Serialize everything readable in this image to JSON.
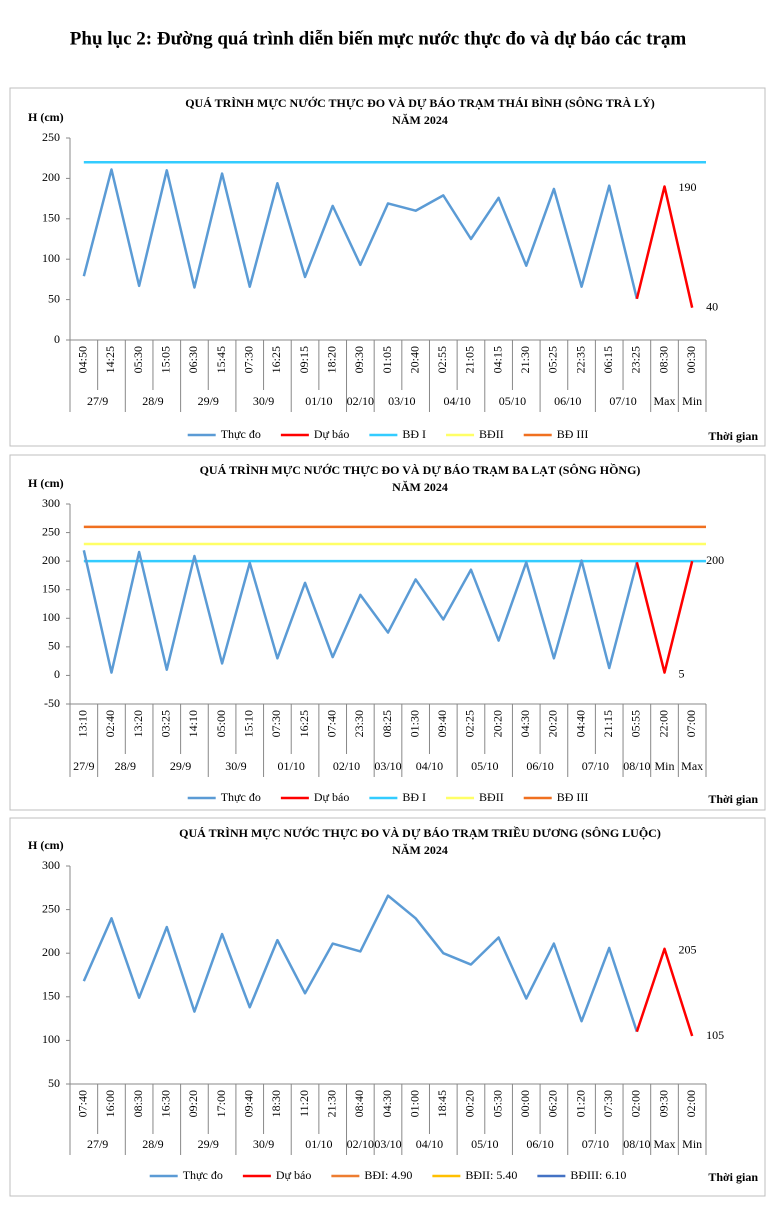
{
  "page_title": "Phụ lục 2: Đường quá trình diễn biến mực nước thực đo và dự báo các trạm",
  "chart_data": [
    {
      "type": "line",
      "title": "QUÁ TRÌNH MỰC NƯỚC THỰC ĐO VÀ DỰ BÁO TRẠM THÁI BÌNH (SÔNG TRÀ LÝ)",
      "subtitle": "NĂM 2024",
      "y_label": "H (cm)",
      "x_label": "Thời gian",
      "ylim": [
        0,
        250
      ],
      "yticks": [
        0,
        50,
        100,
        150,
        200,
        250
      ],
      "categories": [
        "04:50",
        "14:25",
        "05:30",
        "15:05",
        "06:30",
        "15:45",
        "07:30",
        "16:25",
        "09:15",
        "18:20",
        "09:30",
        "01:05",
        "20:40",
        "02:55",
        "21:05",
        "04:15",
        "21:30",
        "05:25",
        "22:35",
        "06:15",
        "23:25",
        "08:30",
        "00:30"
      ],
      "x_groups": [
        {
          "label": "27/9",
          "count": 2
        },
        {
          "label": "28/9",
          "count": 2
        },
        {
          "label": "29/9",
          "count": 2
        },
        {
          "label": "30/9",
          "count": 2
        },
        {
          "label": "01/10",
          "count": 2
        },
        {
          "label": "02/10",
          "count": 1
        },
        {
          "label": "03/10",
          "count": 2
        },
        {
          "label": "04/10",
          "count": 2
        },
        {
          "label": "05/10",
          "count": 2
        },
        {
          "label": "06/10",
          "count": 2
        },
        {
          "label": "07/10",
          "count": 2
        },
        {
          "label": "Max",
          "count": 1
        },
        {
          "label": "Min",
          "count": 1
        }
      ],
      "series": [
        {
          "name": "Thực đo",
          "color": "#5b9bd5",
          "values": [
            79,
            211,
            67,
            210,
            65,
            206,
            66,
            194,
            78,
            166,
            93,
            169,
            160,
            179,
            125,
            176,
            92,
            187,
            66,
            191,
            51,
            null,
            null
          ]
        },
        {
          "name": "Dự báo",
          "color": "#ff0000",
          "values": [
            null,
            null,
            null,
            null,
            null,
            null,
            null,
            null,
            null,
            null,
            null,
            null,
            null,
            null,
            null,
            null,
            null,
            null,
            null,
            null,
            51,
            190,
            40
          ]
        }
      ],
      "thresholds": [
        {
          "name": "BĐ I",
          "color": "#33ccff",
          "value": 220
        },
        {
          "name": "BĐII",
          "color": "#ffff66"
        },
        {
          "name": "BĐ III",
          "color": "#f07020"
        }
      ]
    },
    {
      "type": "line",
      "title": "QUÁ TRÌNH MỰC NƯỚC THỰC ĐO VÀ DỰ BÁO TRẠM BA LẠT (SÔNG HỒNG)",
      "subtitle": "NĂM 2024",
      "y_label": "H (cm)",
      "x_label": "Thời gian",
      "ylim": [
        -50,
        300
      ],
      "yticks": [
        -50,
        0,
        50,
        100,
        150,
        200,
        250,
        300
      ],
      "categories": [
        "13:10",
        "02:40",
        "13:20",
        "03:25",
        "14:10",
        "05:00",
        "15:10",
        "07:30",
        "16:25",
        "07:40",
        "23:30",
        "08:25",
        "01:30",
        "09:40",
        "02:25",
        "20:20",
        "04:30",
        "20:20",
        "04:40",
        "21:15",
        "05:55",
        "22:00",
        "07:00"
      ],
      "x_groups": [
        {
          "label": "27/9",
          "count": 1
        },
        {
          "label": "28/9",
          "count": 2
        },
        {
          "label": "29/9",
          "count": 2
        },
        {
          "label": "30/9",
          "count": 2
        },
        {
          "label": "01/10",
          "count": 2
        },
        {
          "label": "02/10",
          "count": 2
        },
        {
          "label": "03/10",
          "count": 1
        },
        {
          "label": "04/10",
          "count": 2
        },
        {
          "label": "05/10",
          "count": 2
        },
        {
          "label": "06/10",
          "count": 2
        },
        {
          "label": "07/10",
          "count": 2
        },
        {
          "label": "08/10",
          "count": 1
        },
        {
          "label": "Min",
          "count": 1
        },
        {
          "label": "Max",
          "count": 1
        }
      ],
      "series": [
        {
          "name": "Thực đo",
          "color": "#5b9bd5",
          "values": [
            219,
            5,
            216,
            10,
            209,
            21,
            197,
            30,
            162,
            32,
            141,
            75,
            168,
            98,
            185,
            61,
            198,
            30,
            201,
            13,
            198,
            null,
            null
          ]
        },
        {
          "name": "Dự báo",
          "color": "#ff0000",
          "values": [
            null,
            null,
            null,
            null,
            null,
            null,
            null,
            null,
            null,
            null,
            null,
            null,
            null,
            null,
            null,
            null,
            null,
            null,
            null,
            null,
            198,
            5,
            200
          ]
        }
      ],
      "thresholds": [
        {
          "name": "BĐ I",
          "color": "#33ccff",
          "value": 200
        },
        {
          "name": "BĐII",
          "color": "#ffff66",
          "value": 230
        },
        {
          "name": "BĐ III",
          "color": "#f07020",
          "value": 260
        }
      ]
    },
    {
      "type": "line",
      "title": "QUÁ TRÌNH MỰC NƯỚC THỰC ĐO VÀ DỰ BÁO TRẠM TRIỀU DƯƠNG (SÔNG LUỘC)",
      "subtitle": "NĂM 2024",
      "y_label": "H (cm)",
      "x_label": "Thời gian",
      "ylim": [
        50,
        300
      ],
      "yticks": [
        50,
        100,
        150,
        200,
        250,
        300
      ],
      "categories": [
        "07:40",
        "16:00",
        "08:30",
        "16:30",
        "09:20",
        "17:00",
        "09:40",
        "18:30",
        "11:20",
        "21:30",
        "08:40",
        "04:30",
        "01:00",
        "18:45",
        "00:20",
        "05:30",
        "00:00",
        "06:20",
        "01:20",
        "07:30",
        "02:00",
        "09:30",
        "02:00"
      ],
      "x_groups": [
        {
          "label": "27/9",
          "count": 2
        },
        {
          "label": "28/9",
          "count": 2
        },
        {
          "label": "29/9",
          "count": 2
        },
        {
          "label": "30/9",
          "count": 2
        },
        {
          "label": "01/10",
          "count": 2
        },
        {
          "label": "02/10",
          "count": 1
        },
        {
          "label": "03/10",
          "count": 1
        },
        {
          "label": "04/10",
          "count": 2
        },
        {
          "label": "05/10",
          "count": 2
        },
        {
          "label": "06/10",
          "count": 2
        },
        {
          "label": "07/10",
          "count": 2
        },
        {
          "label": "08/10",
          "count": 1
        },
        {
          "label": "Max",
          "count": 1
        },
        {
          "label": "Min",
          "count": 1
        }
      ],
      "series": [
        {
          "name": "Thực đo",
          "color": "#5b9bd5",
          "values": [
            168,
            240,
            149,
            230,
            133,
            222,
            138,
            215,
            154,
            211,
            202,
            266,
            240,
            200,
            187,
            218,
            148,
            211,
            122,
            206,
            110,
            null,
            null
          ]
        },
        {
          "name": "Dự báo",
          "color": "#ff0000",
          "values": [
            null,
            null,
            null,
            null,
            null,
            null,
            null,
            null,
            null,
            null,
            null,
            null,
            null,
            null,
            null,
            null,
            null,
            null,
            null,
            null,
            110,
            205,
            105
          ]
        }
      ],
      "thresholds": [
        {
          "name": "BĐI: 4.90",
          "color": "#ed7d31"
        },
        {
          "name": "BĐII: 5.40",
          "color": "#ffc000"
        },
        {
          "name": "BĐIII: 6.10",
          "color": "#4472c4"
        }
      ]
    }
  ]
}
